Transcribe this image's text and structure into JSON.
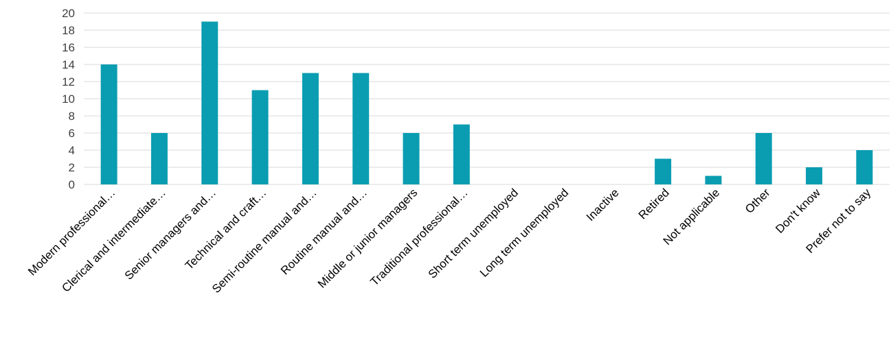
{
  "chart_data": {
    "type": "bar",
    "categories": [
      "Modern professional…",
      "Clerical and intermediate…",
      "Senior managers and…",
      "Technical and craft…",
      "Semi-routine manual and…",
      "Routine manual and…",
      "Middle or junior managers",
      "Traditional professional…",
      "Short term unemployed",
      "Long term unemployed",
      "Inactive",
      "Retired",
      "Not applicable",
      "Other",
      "Don't know",
      "Prefer not to say"
    ],
    "values": [
      14,
      6,
      19,
      11,
      13,
      13,
      6,
      7,
      0,
      0,
      0,
      3,
      1,
      6,
      2,
      4
    ],
    "ylim": [
      0,
      20
    ],
    "yticks": [
      "0",
      "2",
      "4",
      "6",
      "8",
      "10",
      "12",
      "14",
      "16",
      "18",
      "20"
    ],
    "bar_color": "#0a9db1",
    "grid": true,
    "legend": "none"
  }
}
